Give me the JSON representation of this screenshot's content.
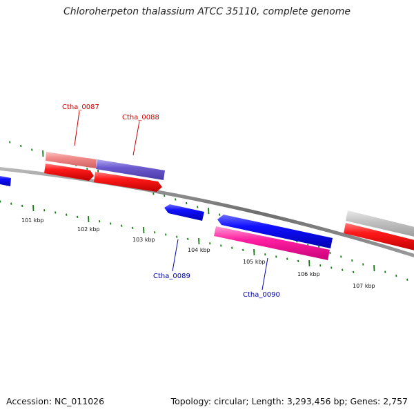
{
  "title": "Chloroherpeton thalassium ATCC 35110, complete genome",
  "footer": {
    "accession": "Accession: NC_011026",
    "summary": "Topology: circular; Length: 3,293,456 bp; Genes: 2,757"
  },
  "scale_labels": [
    "101 kbp",
    "102 kbp",
    "103 kbp",
    "104 kbp",
    "105 kbp",
    "106 kbp",
    "107 kbp"
  ],
  "gene_labels": {
    "g87": "Ctha_0087",
    "g88": "Ctha_0088",
    "g89": "Ctha_0089",
    "g90": "Ctha_0090"
  },
  "colors": {
    "backbone": "#808080",
    "tick": "#1a7a1a",
    "cds_forward": "#ff0000",
    "cds_reverse": "#0000ff",
    "label_forward": "#cc0000",
    "label_reverse": "#0000aa",
    "cog_pink": "#f08a8a",
    "cog_purple": "#7060d0",
    "cog_magenta": "#ff2aa0",
    "cog_gray": "#c0c0c0"
  }
}
